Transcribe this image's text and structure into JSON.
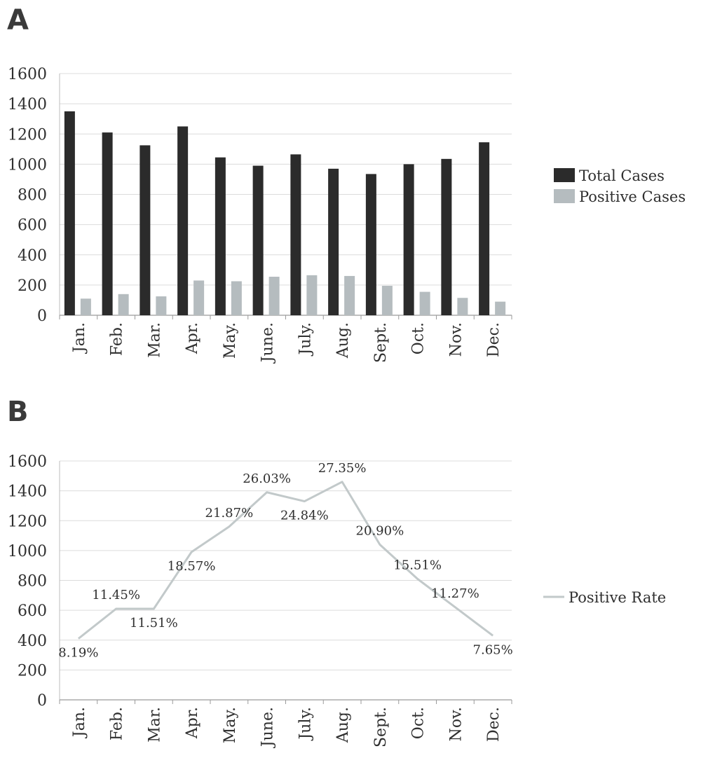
{
  "chart_data": [
    {
      "panel": "A",
      "type": "bar",
      "categories": [
        "Jan.",
        "Feb.",
        "Mar.",
        "Apr.",
        "May.",
        "June.",
        "July.",
        "Aug.",
        "Sept.",
        "Oct.",
        "Nov.",
        "Dec."
      ],
      "series": [
        {
          "name": "Total Cases",
          "color": "#2b2b2b",
          "values": [
            1350,
            1210,
            1125,
            1250,
            1045,
            990,
            1065,
            970,
            935,
            1000,
            1035,
            1145
          ]
        },
        {
          "name": "Positive Cases",
          "color": "#b5bcbf",
          "values": [
            110,
            140,
            125,
            230,
            225,
            255,
            265,
            260,
            195,
            155,
            115,
            90
          ]
        }
      ],
      "yticks": [
        "0",
        "200",
        "400",
        "600",
        "800",
        "1000",
        "1200",
        "1400",
        "1600"
      ],
      "ylim": [
        0,
        1600
      ],
      "legend": "right",
      "grid": true
    },
    {
      "panel": "B",
      "type": "line",
      "categories": [
        "Jan.",
        "Feb.",
        "Mar.",
        "Apr.",
        "May.",
        "June.",
        "July.",
        "Aug.",
        "Sept.",
        "Oct.",
        "Nov.",
        "Dec."
      ],
      "series": [
        {
          "name": "Positive Rate",
          "color": "#c2c9ca",
          "values": [
            410,
            610,
            610,
            990,
            1160,
            1390,
            1330,
            1460,
            1040,
            810,
            620,
            430
          ]
        }
      ],
      "data_labels": [
        "8.19%",
        "11.45%",
        "11.51%",
        "18.57%",
        "21.87%",
        "26.03%",
        "24.84%",
        "27.35%",
        "20.90%",
        "15.51%",
        "11.27%",
        "7.65%"
      ],
      "yticks": [
        "0",
        "200",
        "400",
        "600",
        "800",
        "1000",
        "1200",
        "1400",
        "1600"
      ],
      "ylim": [
        0,
        1600
      ],
      "legend": "right",
      "grid": true
    }
  ],
  "panels": {
    "a": "A",
    "b": "B"
  }
}
